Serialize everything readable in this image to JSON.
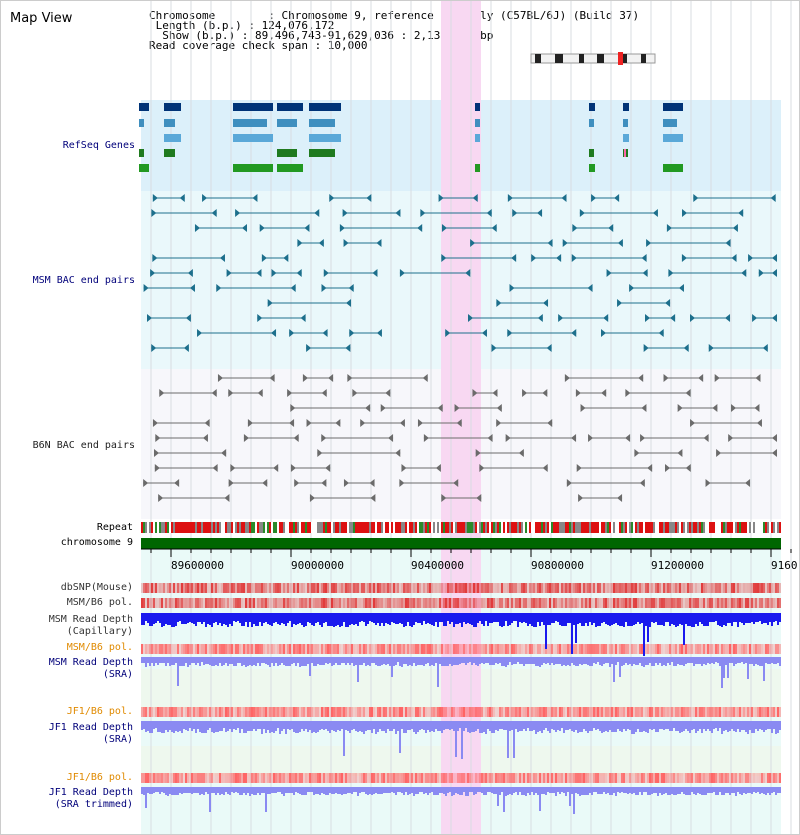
{
  "page": {
    "title": "Map View"
  },
  "info": {
    "chromosome_line": "Chromosome        : Chromosome 9, reference assembly (C57BL/6J) (Build 37)",
    "length_line": " Length (b.p.) : 124,076,172",
    "show_line": "  Show (b.p.) : 89,496,743-91,629,036 : 2,132,294 bp",
    "span_line": "Read coverage check span : 10,000"
  },
  "tracks": {
    "refseq": "RefSeq Genes",
    "msm_bac": "MSM BAC end pairs",
    "b6n_bac": "B6N BAC end pairs",
    "repeat": "Repeat",
    "chromosome": "chromosome 9",
    "dbsnp": "dbSNP(Mouse)",
    "msm_b6_pol": "MSM/B6 pol.",
    "msm_depth_cap": "MSM Read Depth\n(Capillary)",
    "msm_b6_pol_sra": "MSM/B6 pol.",
    "msm_depth_sra": "MSM Read Depth\n(SRA)",
    "jf1_b6_pol": "JF1/B6 pol.",
    "jf1_depth_sra": "JF1 Read Depth\n(SRA)",
    "jf1_b6_pol_trim": "JF1/B6 pol.",
    "jf1_depth_trim": "JF1 Read Depth\n(SRA trimmed)"
  },
  "ruler": {
    "ticks": [
      "89600000",
      "90000000",
      "90400000",
      "90800000",
      "91200000",
      "9160"
    ]
  },
  "colors": {
    "refseq_bg": "#dcf0fa",
    "msm_bg": "#eaf8fb",
    "b6n_bg": "#f7f7fb",
    "highlight": "#f8d8f2",
    "chromosome": "#006600",
    "depth_capillary": "#1a1aee",
    "depth_sra": "#8a8af2",
    "label_navy": "#00007a",
    "label_orange": "#e08a00",
    "msm_pair": "#1d6f8c",
    "b6n_pair": "#6b6b6b"
  },
  "icons": {
    "ideogram": "chromosome-ideogram-icon"
  }
}
